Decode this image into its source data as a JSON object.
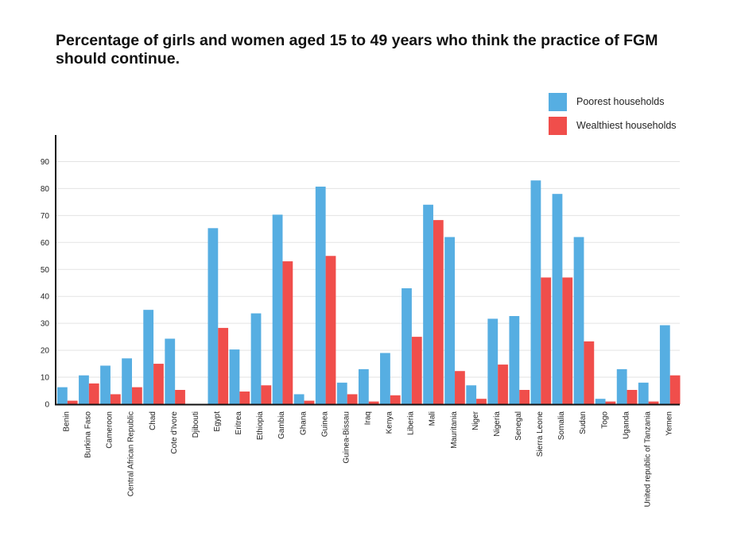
{
  "chart_data": {
    "type": "bar",
    "title": "Percentage of girls and women aged 15 to 49 years who think the practice of FGM should continue.",
    "xlabel": "",
    "ylabel": "",
    "ylim": [
      0,
      100
    ],
    "yticks": [
      0,
      10,
      20,
      30,
      40,
      50,
      60,
      70,
      80,
      90
    ],
    "grid": true,
    "legend": "top-right",
    "categories": [
      "Benin",
      "Burkina Faso",
      "Cameroon",
      "Central African Republic",
      "Chad",
      "Cote d'Ivore",
      "Djibouti",
      "Egypt",
      "Eritrea",
      "Ethiopia",
      "Gambia",
      "Ghana",
      "Guinea",
      "Guinea-Bissau",
      "Iraq",
      "Kenya",
      "Liberia",
      "Mali",
      "Mauritania",
      "Niger",
      "Nigeria",
      "Senegal",
      "Sierra Leone",
      "Somalia",
      "Sudan",
      "Togo",
      "Uganda",
      "United republic of Tanzania",
      "Yemen"
    ],
    "series": [
      {
        "name": "Poorest households",
        "color": "#56aee2",
        "values": [
          6.3,
          10.7,
          14.3,
          17,
          35,
          24.3,
          0,
          65.3,
          20.3,
          33.7,
          70.3,
          3.7,
          80.7,
          8,
          13,
          19,
          43,
          74,
          62,
          7,
          31.7,
          32.7,
          83,
          78,
          62,
          2,
          13,
          8,
          29.3
        ]
      },
      {
        "name": "Wealthiest households",
        "color": "#f04e4b",
        "values": [
          1.3,
          7.7,
          3.7,
          6.3,
          15,
          5.3,
          0,
          28.3,
          4.7,
          7,
          53,
          1.3,
          55,
          3.7,
          1,
          3.3,
          25,
          68.3,
          12.3,
          2,
          14.7,
          5.3,
          47,
          47,
          23.3,
          1,
          5.3,
          1,
          10.7
        ]
      }
    ]
  }
}
